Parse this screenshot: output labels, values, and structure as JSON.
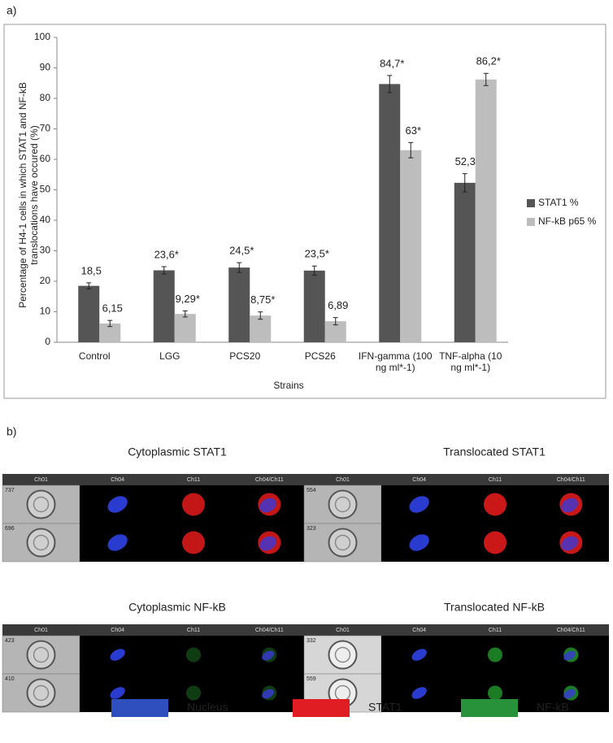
{
  "panel_a_label": "a)",
  "chart_data": {
    "type": "bar",
    "ylabel": "Percentage of H4-1 cells in which STAT1 and NF-kB translocations have occured (%)",
    "xlabel": "Strains",
    "categories": [
      "Control",
      "LGG",
      "PCS20",
      "PCS26",
      "IFN-gamma (100 ng ml*-1)",
      "TNF-alpha (10 ng ml*-1)"
    ],
    "series": [
      {
        "name": "STAT1 %",
        "color": "#555555",
        "values": [
          18.5,
          23.6,
          24.5,
          23.5,
          84.7,
          52.3
        ],
        "value_labels": [
          "18,5",
          "23,6*",
          "24,5*",
          "23,5*",
          "84,7*",
          "52,3*"
        ],
        "errors": [
          1,
          1.2,
          1.6,
          1.5,
          2.8,
          3
        ]
      },
      {
        "name": "NF-kB p65 %",
        "color": "#bdbdbd",
        "values": [
          6.15,
          9.29,
          8.75,
          6.89,
          63,
          86.2
        ],
        "value_labels": [
          "6,15",
          "9,29*",
          "8,75*",
          "6,89",
          "63*",
          "86,2*"
        ],
        "errors": [
          1,
          1,
          1.2,
          1.2,
          2.5,
          2
        ]
      }
    ],
    "ylim": [
      0,
      100
    ],
    "yticks": [
      0,
      10,
      20,
      30,
      40,
      50,
      60,
      70,
      80,
      90,
      100
    ],
    "grid": false,
    "legend": "right"
  },
  "panel_b": {
    "label": "b)",
    "channels": [
      "Ch01",
      "Ch04",
      "Ch11",
      "Ch04/Ch11"
    ],
    "groups": [
      {
        "title": "Cytoplasmic STAT1",
        "stain_color": "#d81818",
        "rows": [
          "737",
          "696"
        ]
      },
      {
        "title": "Translocated STAT1",
        "stain_color": "#e01a1a",
        "rows": [
          "554",
          "323"
        ]
      },
      {
        "title": "Cytoplasmic NF-kB",
        "stain_color": "#1e6e22",
        "rows": [
          "423",
          "410"
        ]
      },
      {
        "title": "Translocated NF-kB",
        "stain_color": "#1f8a28",
        "rows": [
          "332",
          "559"
        ]
      }
    ],
    "legend": [
      {
        "label": "Nucleus",
        "color": "#2f4fbf"
      },
      {
        "label": "STAT1",
        "color": "#e11d24"
      },
      {
        "label": "NF-kB",
        "color": "#27923a"
      }
    ]
  }
}
